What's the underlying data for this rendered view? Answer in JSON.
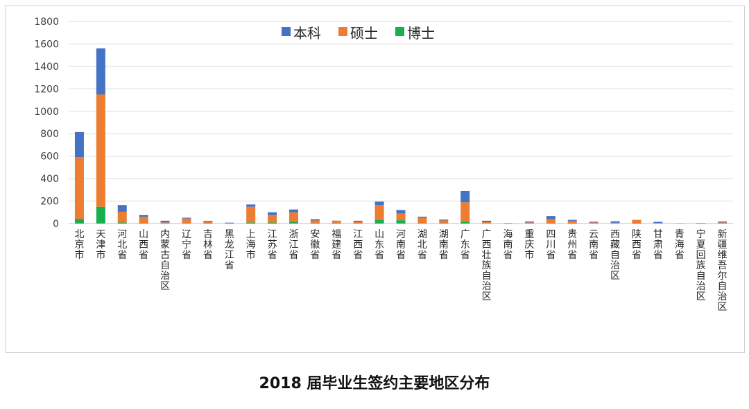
{
  "caption": "2018 届毕业生签约主要地区分布",
  "chart_data": {
    "type": "bar",
    "stacked": true,
    "categories": [
      "北京市",
      "天津市",
      "河北省",
      "山西省",
      "内蒙古自治区",
      "辽宁省",
      "吉林省",
      "黑龙江省",
      "上海市",
      "江苏省",
      "浙江省",
      "安徽省",
      "福建省",
      "江西省",
      "山东省",
      "河南省",
      "湖北省",
      "湖南省",
      "广东省",
      "广西壮族自治区",
      "海南省",
      "重庆市",
      "四川省",
      "贵州省",
      "云南省",
      "西藏自治区",
      "陕西省",
      "甘肃省",
      "青海省",
      "宁夏回族自治区",
      "新疆维吾尔自治区"
    ],
    "series": [
      {
        "name": "博士",
        "color": "#1aae4f",
        "values": [
          40,
          150,
          10,
          5,
          2,
          5,
          3,
          1,
          10,
          10,
          15,
          3,
          3,
          5,
          35,
          30,
          5,
          3,
          15,
          2,
          1,
          2,
          5,
          3,
          2,
          2,
          3,
          1,
          0,
          1,
          2
        ]
      },
      {
        "name": "硕士",
        "color": "#ed7d31",
        "values": [
          550,
          1000,
          95,
          55,
          8,
          40,
          10,
          2,
          140,
          65,
          85,
          25,
          20,
          10,
          130,
          60,
          45,
          25,
          175,
          10,
          2,
          8,
          35,
          22,
          8,
          5,
          30,
          5,
          0,
          3,
          8
        ]
      },
      {
        "name": "本科",
        "color": "#4472c4",
        "values": [
          225,
          410,
          60,
          15,
          15,
          7,
          10,
          5,
          20,
          25,
          25,
          10,
          3,
          10,
          30,
          30,
          10,
          7,
          100,
          13,
          2,
          8,
          27,
          8,
          6,
          13,
          0,
          9,
          2,
          2,
          8
        ]
      }
    ],
    "legend_order": [
      "本科",
      "硕士",
      "博士"
    ],
    "legend_position": "top-center",
    "ylim": [
      0,
      1800
    ],
    "yticks": [
      0,
      200,
      400,
      600,
      800,
      1000,
      1200,
      1400,
      1600,
      1800
    ],
    "grid": true
  }
}
